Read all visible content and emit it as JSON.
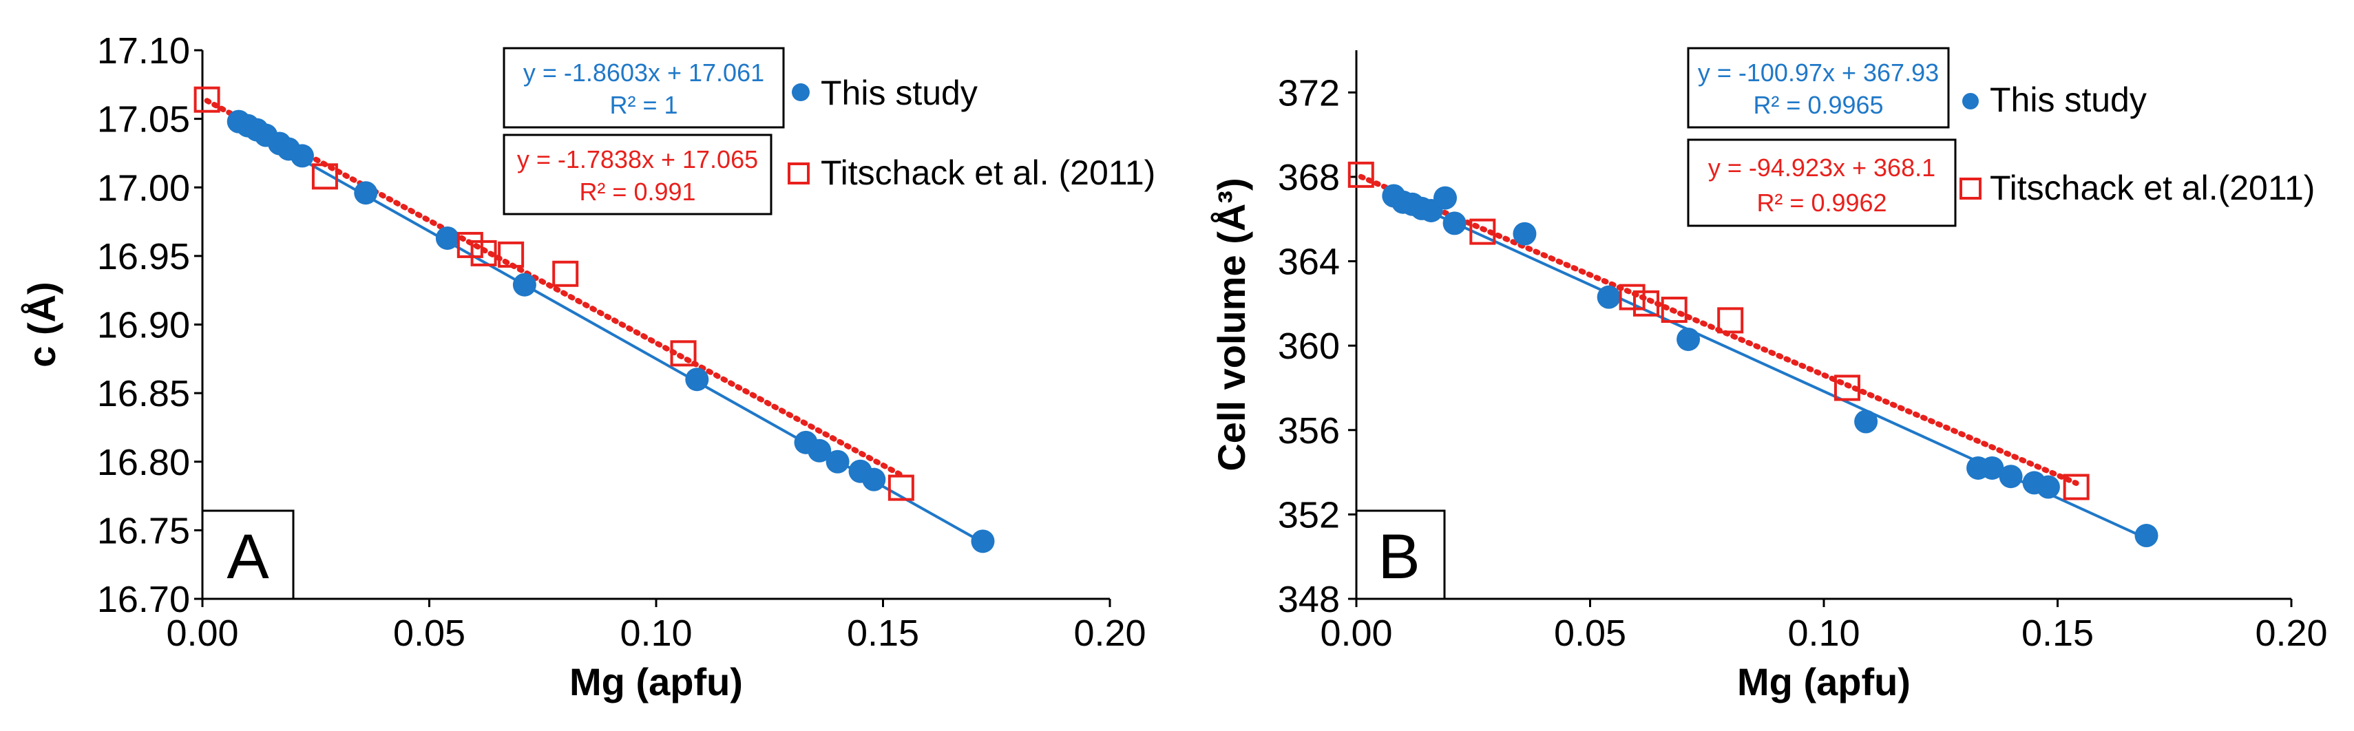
{
  "colors": {
    "this_study": "#1f78c8",
    "titschack": "#e8201c",
    "axis": "#000000"
  },
  "chart_data": [
    {
      "type": "scatter",
      "panel": "A",
      "xlabel": "Mg (apfu)",
      "ylabel": "c (Å)",
      "xlim": [
        0,
        0.2
      ],
      "ylim": [
        16.7,
        17.1
      ],
      "xticks": [
        0,
        0.05,
        0.1,
        0.15,
        0.2
      ],
      "xtick_labels": [
        "0.00",
        "0.05",
        "0.10",
        "0.15",
        "0.20"
      ],
      "yticks": [
        16.7,
        16.75,
        16.8,
        16.85,
        16.9,
        16.95,
        17.0,
        17.05,
        17.1
      ],
      "ytick_labels": [
        "16.70",
        "16.75",
        "16.80",
        "16.85",
        "16.90",
        "16.95",
        "17.00",
        "17.05",
        "17.10"
      ],
      "series": [
        {
          "name": "This study",
          "marker": "filled-circle",
          "x": [
            0.008,
            0.01,
            0.012,
            0.014,
            0.017,
            0.019,
            0.022,
            0.036,
            0.054,
            0.071,
            0.109,
            0.133,
            0.136,
            0.14,
            0.145,
            0.148,
            0.172
          ],
          "y": [
            17.048,
            17.045,
            17.042,
            17.038,
            17.032,
            17.028,
            17.023,
            16.996,
            16.963,
            16.929,
            16.86,
            16.814,
            16.808,
            16.8,
            16.793,
            16.787,
            16.742
          ],
          "trendline": {
            "slope": -1.8603,
            "intercept": 17.061,
            "x_range": [
              0.008,
              0.172
            ],
            "style": "solid"
          },
          "equation": "y = -1.8603x + 17.061",
          "r2": "R² = 1"
        },
        {
          "name": "Titschack et al. (2011)",
          "marker": "open-square",
          "x": [
            0.001,
            0.027,
            0.059,
            0.062,
            0.068,
            0.08,
            0.106,
            0.154
          ],
          "y": [
            17.064,
            17.008,
            16.958,
            16.952,
            16.951,
            16.937,
            16.879,
            16.781
          ],
          "trendline": {
            "slope": -1.7838,
            "intercept": 17.065,
            "x_range": [
              0.001,
              0.154
            ],
            "style": "dotted"
          },
          "equation": "y = -1.7838x + 17.065",
          "r2": "R² = 0.991"
        }
      ]
    },
    {
      "type": "scatter",
      "panel": "B",
      "xlabel": "Mg (apfu)",
      "ylabel": "Cell volume (Å³)",
      "xlim": [
        0,
        0.2
      ],
      "ylim": [
        348,
        374
      ],
      "xticks": [
        0,
        0.05,
        0.1,
        0.15,
        0.2
      ],
      "xtick_labels": [
        "0.00",
        "0.05",
        "0.10",
        "0.15",
        "0.20"
      ],
      "yticks": [
        348,
        352,
        356,
        360,
        364,
        368,
        372
      ],
      "ytick_labels": [
        "348",
        "352",
        "356",
        "360",
        "364",
        "368",
        "372"
      ],
      "series": [
        {
          "name": "This study",
          "marker": "filled-circle",
          "x": [
            0.008,
            0.01,
            0.012,
            0.014,
            0.016,
            0.019,
            0.021,
            0.036,
            0.054,
            0.071,
            0.109,
            0.133,
            0.136,
            0.14,
            0.145,
            0.148,
            0.169
          ],
          "y": [
            367.1,
            366.8,
            366.7,
            366.5,
            366.4,
            367.0,
            365.8,
            365.3,
            362.3,
            360.3,
            356.4,
            354.2,
            354.2,
            353.8,
            353.5,
            353.3,
            351.0
          ],
          "trendline": {
            "slope": -100.97,
            "intercept": 367.93,
            "x_range": [
              0.008,
              0.169
            ],
            "style": "solid"
          },
          "equation": "y = -100.97x + 367.93",
          "r2": "R² = 0.9965"
        },
        {
          "name": "Titschack et al.(2011)",
          "marker": "open-square",
          "x": [
            0.001,
            0.027,
            0.059,
            0.062,
            0.068,
            0.08,
            0.105,
            0.154
          ],
          "y": [
            368.1,
            365.4,
            362.3,
            362.0,
            361.7,
            361.2,
            358.0,
            353.3
          ],
          "trendline": {
            "slope": -94.923,
            "intercept": 368.1,
            "x_range": [
              0.001,
              0.154
            ],
            "style": "dotted"
          },
          "equation": "y = -94.923x + 368.1",
          "r2": "R² = 0.9962"
        }
      ]
    }
  ]
}
